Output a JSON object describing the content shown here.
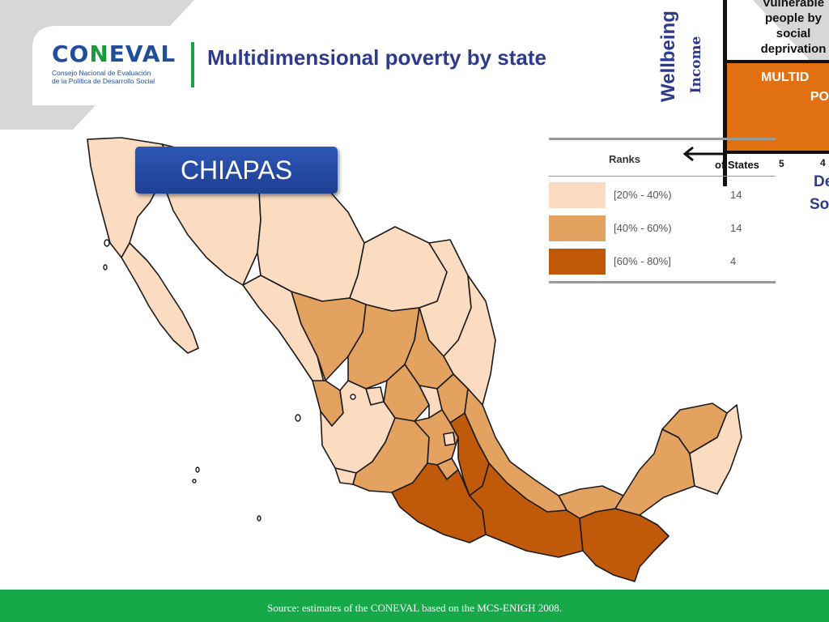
{
  "header": {
    "logo_wordmark_part1": "CO",
    "logo_wordmark_letter": "N",
    "logo_wordmark_part2": "EVAL",
    "logo_subtitle_line1": "Consejo Nacional de Evaluación",
    "logo_subtitle_line2": "de la Política de Desarrollo Social",
    "title": "Multidimensional poverty by state"
  },
  "diagram_fragment": {
    "wellbeing_label": "Wellbeing",
    "income_label": "Income",
    "vulnerable_text": "Vulnerable people by social deprivation",
    "multidimensional_line1": "MULTID",
    "multidimensional_line2": "PO",
    "number_5": "5",
    "number_4": "4",
    "social_fragment_1": "De",
    "social_fragment_2": "So"
  },
  "state_label": "CHIAPAS",
  "legend": {
    "ranks_label": "Ranks",
    "states_label": "of States",
    "rows": [
      {
        "range": "[20% - 40%)",
        "count": "14",
        "color": "#fbdcc0"
      },
      {
        "range": "[40% - 60%)",
        "count": "14",
        "color": "#e4a261"
      },
      {
        "range": "[60% - 80%]",
        "count": "4",
        "color": "#c05a0a"
      }
    ]
  },
  "colors": {
    "low": "#fbdcc0",
    "mid": "#e4a261",
    "high": "#c05a0a",
    "footer": "#17a84a",
    "title": "#2e3a8c",
    "diagram_orange": "#e07012"
  },
  "footer": {
    "source": "Source: estimates of the CONEVAL based on the MCS-ENIGH 2008."
  }
}
